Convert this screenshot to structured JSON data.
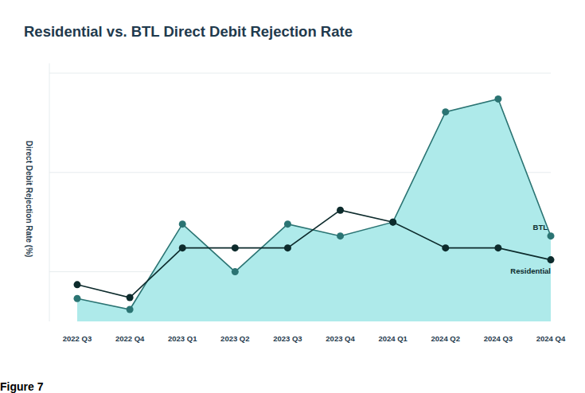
{
  "chart_data": {
    "type": "line",
    "title": "Residential vs. BTL Direct Debit Rejection Rate",
    "y_label": "Direct Debit  Rejection Rate (%)",
    "caption": "Figure 7",
    "categories": [
      "2022 Q3",
      "2022 Q4",
      "2023 Q1",
      "2023 Q2",
      "2023 Q3",
      "2023 Q4",
      "2024 Q1",
      "2024 Q2",
      "2024 Q3",
      "2024 Q4"
    ],
    "series": [
      {
        "name": "BTL",
        "type": "area",
        "color": "#2b7473",
        "marker": "circle",
        "values": [
          0.73,
          0.62,
          1.48,
          1.0,
          1.48,
          1.36,
          1.5,
          2.61,
          2.74,
          1.36
        ]
      },
      {
        "name": "Residential",
        "type": "line",
        "color": "#0d2b2c",
        "marker": "circle",
        "values": [
          0.87,
          0.74,
          1.24,
          1.24,
          1.24,
          1.62,
          1.5,
          1.24,
          1.24,
          1.12
        ]
      }
    ],
    "ylim": [
      0.5,
      3.1
    ],
    "yticks": [
      1,
      2,
      3
    ],
    "grid": true,
    "tick_labels": "x"
  }
}
